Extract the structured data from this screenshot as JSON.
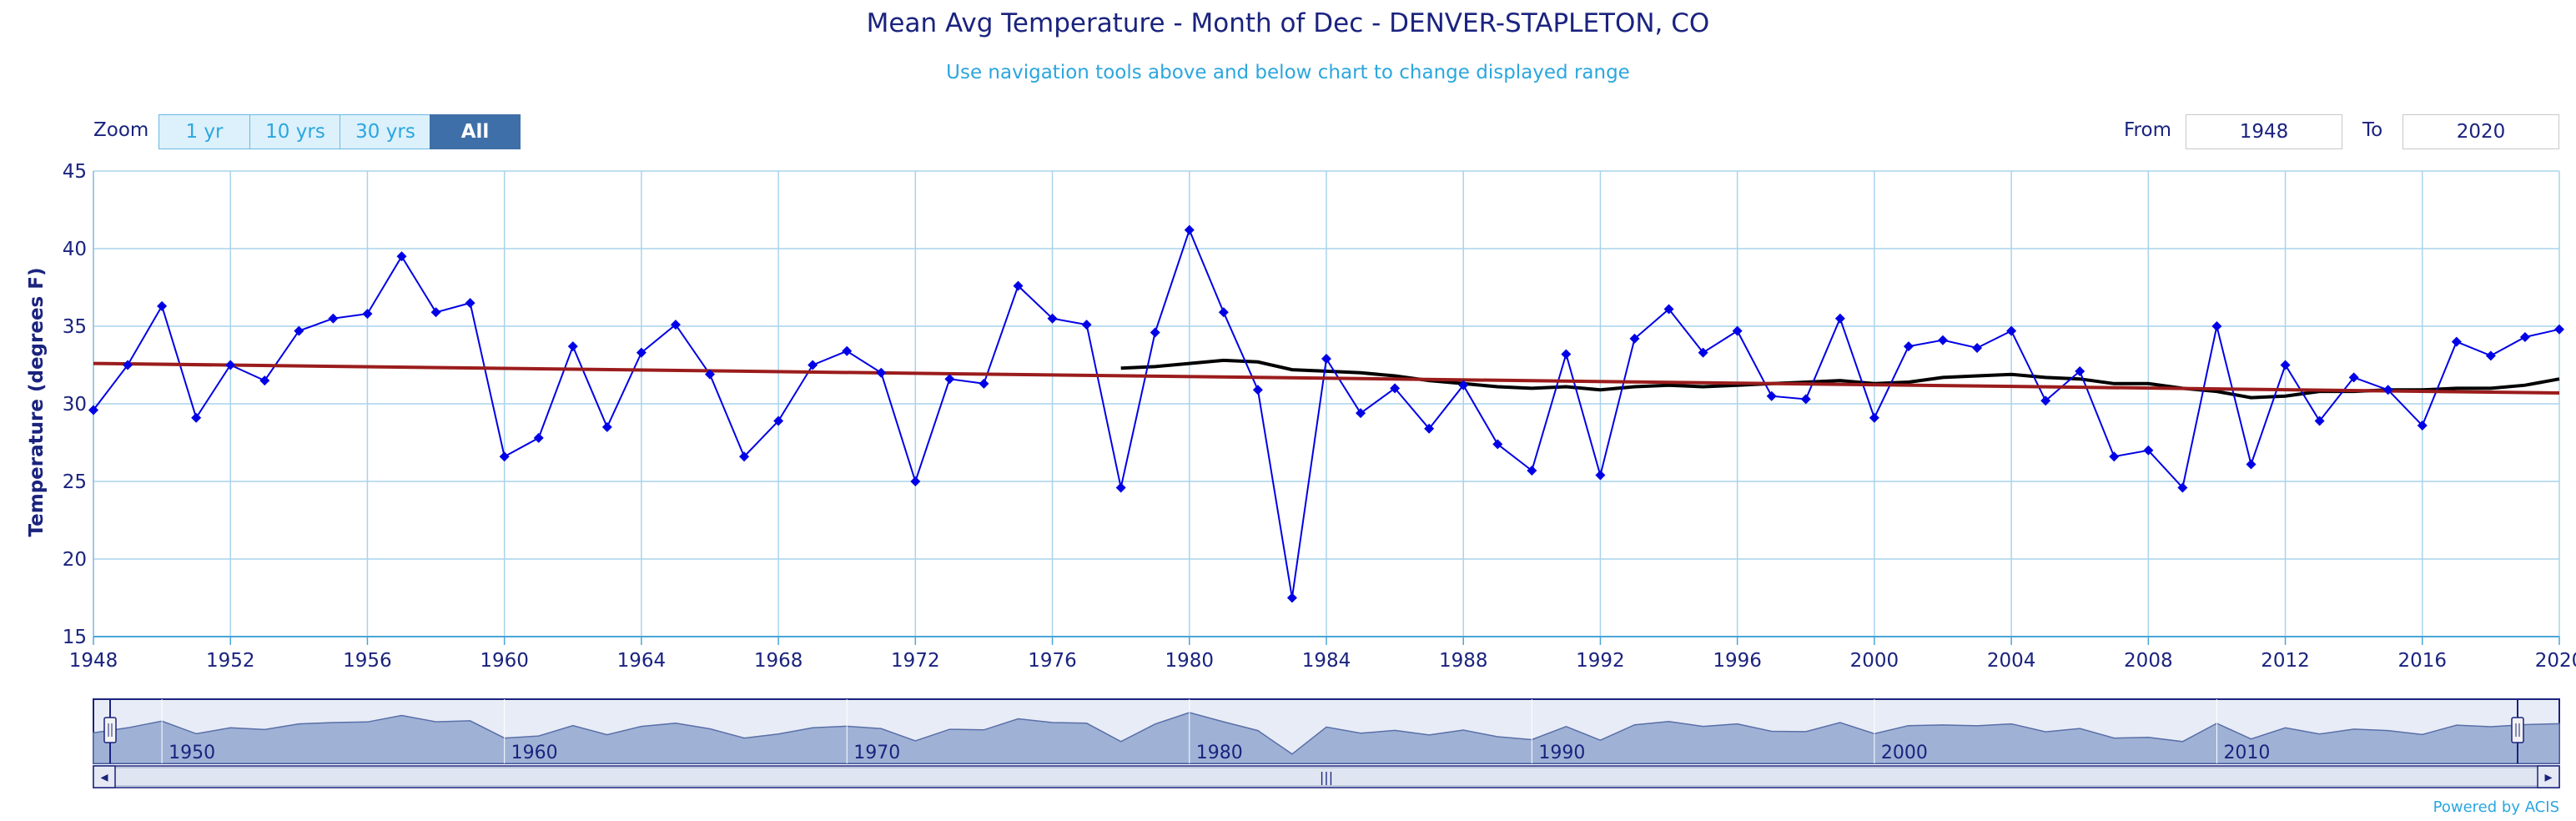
{
  "header": {
    "title": "Mean Avg Temperature - Month of Dec - DENVER-STAPLETON, CO",
    "subtitle": "Use navigation tools above and below chart to change displayed range"
  },
  "zoom": {
    "label": "Zoom",
    "buttons": [
      {
        "label": "1 yr",
        "active": false
      },
      {
        "label": "10 yrs",
        "active": false
      },
      {
        "label": "30 yrs",
        "active": false
      },
      {
        "label": "All",
        "active": true
      }
    ]
  },
  "range": {
    "from_label": "From",
    "from_value": "1948",
    "to_label": "To",
    "to_value": "2020"
  },
  "footer": {
    "powered_by": "Powered by ACIS"
  },
  "colors": {
    "series": "#0000e6",
    "running_mean": "#000000",
    "trend": "#9b1c1c",
    "grid": "#a9d3ec",
    "axis_text": "#1a237e",
    "navigator_fill": "#9fb2d6",
    "navigator_stroke": "#1a237e"
  },
  "chart_data": {
    "type": "line",
    "title": "Mean Avg Temperature - Month of Dec - DENVER-STAPLETON, CO",
    "ylabel": "Temperature (degrees F)",
    "xlabel": "",
    "xlim": [
      1948,
      2020
    ],
    "ylim": [
      15,
      45
    ],
    "xticks": [
      1948,
      1952,
      1956,
      1960,
      1964,
      1968,
      1972,
      1976,
      1980,
      1984,
      1988,
      1992,
      1996,
      2000,
      2004,
      2008,
      2012,
      2016,
      2020
    ],
    "yticks": [
      15,
      20,
      25,
      30,
      35,
      40,
      45
    ],
    "grid": true,
    "series": [
      {
        "kind": "observed",
        "x": [
          1948,
          1949,
          1950,
          1951,
          1952,
          1953,
          1954,
          1955,
          1956,
          1957,
          1958,
          1959,
          1960,
          1961,
          1962,
          1963,
          1964,
          1965,
          1966,
          1967,
          1968,
          1969,
          1970,
          1971,
          1972,
          1973,
          1974,
          1975,
          1976,
          1977,
          1978,
          1979,
          1980,
          1981,
          1982,
          1983,
          1984,
          1985,
          1986,
          1987,
          1988,
          1989,
          1990,
          1991,
          1992,
          1993,
          1994,
          1995,
          1996,
          1997,
          1998,
          1999,
          2000,
          2001,
          2002,
          2003,
          2004,
          2005,
          2006,
          2007,
          2008,
          2009,
          2010,
          2011,
          2012,
          2013,
          2014,
          2015,
          2016,
          2017,
          2018,
          2019,
          2020
        ],
        "values": [
          29.6,
          32.5,
          36.3,
          29.1,
          32.5,
          31.5,
          34.7,
          35.5,
          35.8,
          39.5,
          35.9,
          36.5,
          26.6,
          27.8,
          33.7,
          28.5,
          33.3,
          35.1,
          31.9,
          26.6,
          28.9,
          32.5,
          33.4,
          32.0,
          25.0,
          31.6,
          31.3,
          37.6,
          35.5,
          35.1,
          24.6,
          34.6,
          41.2,
          35.9,
          30.9,
          17.5,
          32.9,
          29.4,
          31.0,
          28.4,
          31.2,
          27.4,
          25.7,
          33.2,
          25.4,
          34.2,
          36.1,
          33.3,
          34.7,
          30.5,
          30.3,
          35.5,
          29.1,
          33.7,
          34.1,
          33.6,
          34.7,
          30.2,
          32.1,
          26.6,
          27.0,
          24.6,
          35.0,
          26.1,
          32.5,
          28.9,
          31.7,
          30.9,
          28.6,
          34.0,
          33.1,
          34.3,
          34.8
        ]
      },
      {
        "kind": "running-mean",
        "x": [
          1978,
          1979,
          1980,
          1981,
          1982,
          1983,
          1984,
          1985,
          1986,
          1987,
          1988,
          1989,
          1990,
          1991,
          1992,
          1993,
          1994,
          1995,
          1996,
          1997,
          1998,
          1999,
          2000,
          2001,
          2002,
          2003,
          2004,
          2005,
          2006,
          2007,
          2008,
          2009,
          2010,
          2011,
          2012,
          2013,
          2014,
          2015,
          2016,
          2017,
          2018,
          2019,
          2020
        ],
        "values": [
          32.3,
          32.4,
          32.6,
          32.8,
          32.7,
          32.2,
          32.1,
          32.0,
          31.8,
          31.5,
          31.3,
          31.1,
          31.0,
          31.1,
          30.9,
          31.1,
          31.2,
          31.1,
          31.2,
          31.3,
          31.4,
          31.5,
          31.3,
          31.4,
          31.7,
          31.8,
          31.9,
          31.7,
          31.6,
          31.3,
          31.3,
          31.0,
          30.8,
          30.4,
          30.5,
          30.8,
          30.8,
          30.9,
          30.9,
          31.0,
          31.0,
          31.2,
          31.6
        ]
      },
      {
        "kind": "trend",
        "x": [
          1948,
          2020
        ],
        "values": [
          32.6,
          30.7
        ]
      }
    ]
  },
  "navigator": {
    "tick_labels": [
      "1950",
      "1960",
      "1970",
      "1980",
      "1990",
      "2000",
      "2010"
    ],
    "handle_glyph": "|||",
    "left_arrow": "◂",
    "right_arrow": "▸"
  }
}
